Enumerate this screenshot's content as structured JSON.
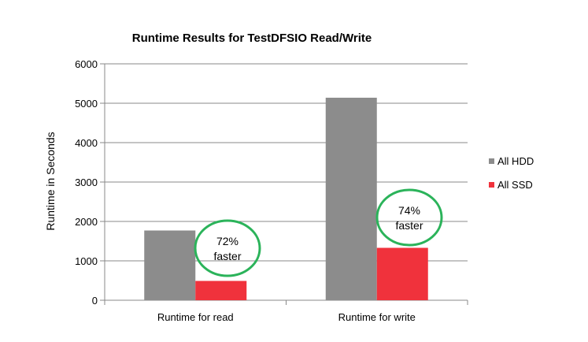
{
  "chart_data": {
    "type": "bar",
    "title": "Runtime Results for TestDFSIO Read/Write",
    "xlabel": "",
    "ylabel": "Runtime in Seconds",
    "ylim": [
      0,
      6000
    ],
    "yticks": [
      0,
      1000,
      2000,
      3000,
      4000,
      5000,
      6000
    ],
    "grid": true,
    "legend_position": "right",
    "categories": [
      "Runtime for read",
      "Runtime for write"
    ],
    "series": [
      {
        "name": "All HDD",
        "color": "#8c8c8c",
        "values": [
          1770,
          5140
        ]
      },
      {
        "name": "All SSD",
        "color": "#f0323c",
        "values": [
          490,
          1330
        ]
      }
    ],
    "annotations": [
      {
        "category_index": 0,
        "line1": "72%",
        "line2": "faster",
        "color": "#2bb35a"
      },
      {
        "category_index": 1,
        "line1": "74%",
        "line2": "faster",
        "color": "#2bb35a"
      }
    ]
  }
}
